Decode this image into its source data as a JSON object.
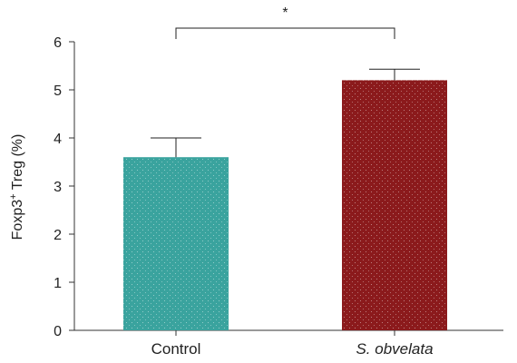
{
  "chart_data": {
    "type": "bar",
    "categories": [
      "Control",
      "S. obvelata"
    ],
    "category_styles": [
      "normal",
      "italic"
    ],
    "values": [
      3.6,
      5.2
    ],
    "error_upper": [
      4.0,
      5.43
    ],
    "colors": [
      "#3aa39e",
      "#8b1a1c"
    ],
    "ylabel": {
      "prefix": "Foxp3",
      "superscript": "+",
      "suffix": " Treg (%)"
    },
    "ylim": [
      0,
      6
    ],
    "yticks": [
      "0",
      "1",
      "2",
      "3",
      "4",
      "5",
      "6"
    ],
    "grid": false,
    "significance": {
      "label": "*",
      "between": [
        0,
        1
      ]
    }
  }
}
